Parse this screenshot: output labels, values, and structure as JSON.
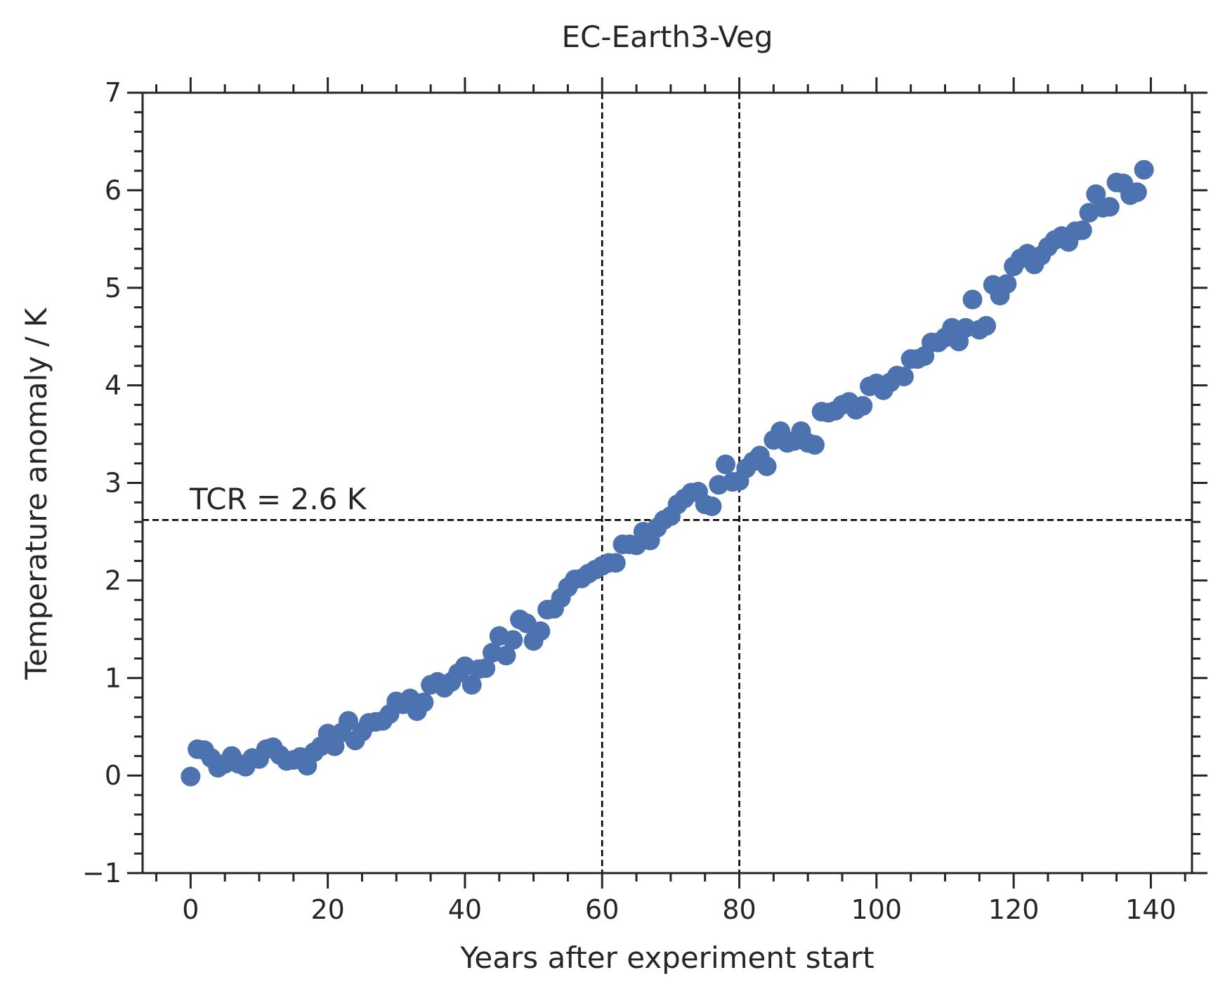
{
  "chart_data": {
    "type": "scatter",
    "title": "EC-Earth3-Veg",
    "xlabel": "Years after experiment start",
    "ylabel": "Temperature anomaly / K",
    "xlim": [
      -7,
      146
    ],
    "ylim": [
      -1,
      7
    ],
    "xticks": [
      0,
      20,
      40,
      60,
      80,
      100,
      120,
      140
    ],
    "yticks": [
      -1,
      0,
      1,
      2,
      3,
      4,
      5,
      6,
      7
    ],
    "xtick_labels": [
      "0",
      "20",
      "40",
      "60",
      "80",
      "100",
      "120",
      "140"
    ],
    "ytick_labels": [
      "−1",
      "0",
      "1",
      "2",
      "3",
      "4",
      "5",
      "6",
      "7"
    ],
    "grid": false,
    "marker_color": "#4c72b0",
    "reference_lines": {
      "vertical_x": [
        60,
        80
      ],
      "horizontal_y": 2.62,
      "style": "dashed",
      "color": "#000000"
    },
    "annotation": {
      "text": "TCR = 2.6 K",
      "x": 0,
      "y": 2.65
    },
    "x": [
      0,
      1,
      2,
      3,
      4,
      5,
      6,
      7,
      8,
      9,
      10,
      11,
      12,
      13,
      14,
      15,
      16,
      17,
      18,
      19,
      20,
      21,
      22,
      23,
      24,
      25,
      26,
      27,
      28,
      29,
      30,
      31,
      32,
      33,
      34,
      35,
      36,
      37,
      38,
      39,
      40,
      41,
      42,
      43,
      44,
      45,
      46,
      47,
      48,
      49,
      50,
      51,
      52,
      53,
      54,
      55,
      56,
      57,
      58,
      59,
      60,
      61,
      62,
      63,
      64,
      65,
      66,
      67,
      68,
      69,
      70,
      71,
      72,
      73,
      74,
      75,
      76,
      77,
      78,
      79,
      80,
      81,
      82,
      83,
      84,
      85,
      86,
      87,
      88,
      89,
      90,
      91,
      92,
      93,
      94,
      95,
      96,
      97,
      98,
      99,
      100,
      101,
      102,
      103,
      104,
      105,
      106,
      107,
      108,
      109,
      110,
      111,
      112,
      113,
      114,
      115,
      116,
      117,
      118,
      119,
      120,
      121,
      122,
      123,
      124,
      125,
      126,
      127,
      128,
      129,
      130,
      131,
      132,
      133,
      134,
      135,
      136,
      137,
      138,
      139
    ],
    "y": [
      -0.01,
      0.27,
      0.26,
      0.18,
      0.08,
      0.12,
      0.2,
      0.12,
      0.09,
      0.18,
      0.17,
      0.27,
      0.29,
      0.21,
      0.15,
      0.16,
      0.19,
      0.1,
      0.24,
      0.3,
      0.43,
      0.3,
      0.44,
      0.56,
      0.36,
      0.45,
      0.54,
      0.55,
      0.56,
      0.63,
      0.76,
      0.73,
      0.79,
      0.66,
      0.75,
      0.93,
      0.96,
      0.9,
      0.96,
      1.05,
      1.12,
      0.93,
      1.09,
      1.1,
      1.26,
      1.43,
      1.23,
      1.39,
      1.6,
      1.56,
      1.38,
      1.48,
      1.7,
      1.71,
      1.82,
      1.93,
      2.01,
      2.02,
      2.07,
      2.11,
      2.15,
      2.18,
      2.18,
      2.37,
      2.37,
      2.36,
      2.5,
      2.41,
      2.54,
      2.62,
      2.66,
      2.78,
      2.84,
      2.9,
      2.91,
      2.78,
      2.76,
      2.98,
      3.19,
      3.01,
      3.02,
      3.15,
      3.22,
      3.28,
      3.17,
      3.44,
      3.53,
      3.41,
      3.43,
      3.53,
      3.41,
      3.39,
      3.73,
      3.72,
      3.74,
      3.8,
      3.83,
      3.75,
      3.79,
      3.99,
      4.02,
      3.95,
      4.03,
      4.1,
      4.09,
      4.27,
      4.27,
      4.3,
      4.44,
      4.44,
      4.49,
      4.59,
      4.45,
      4.59,
      4.88,
      4.57,
      4.61,
      5.03,
      4.92,
      5.04,
      5.22,
      5.3,
      5.35,
      5.24,
      5.33,
      5.42,
      5.49,
      5.53,
      5.47,
      5.58,
      5.59,
      5.77,
      5.96,
      5.82,
      5.83,
      6.08,
      6.07,
      5.95,
      5.98,
      6.21
    ]
  }
}
